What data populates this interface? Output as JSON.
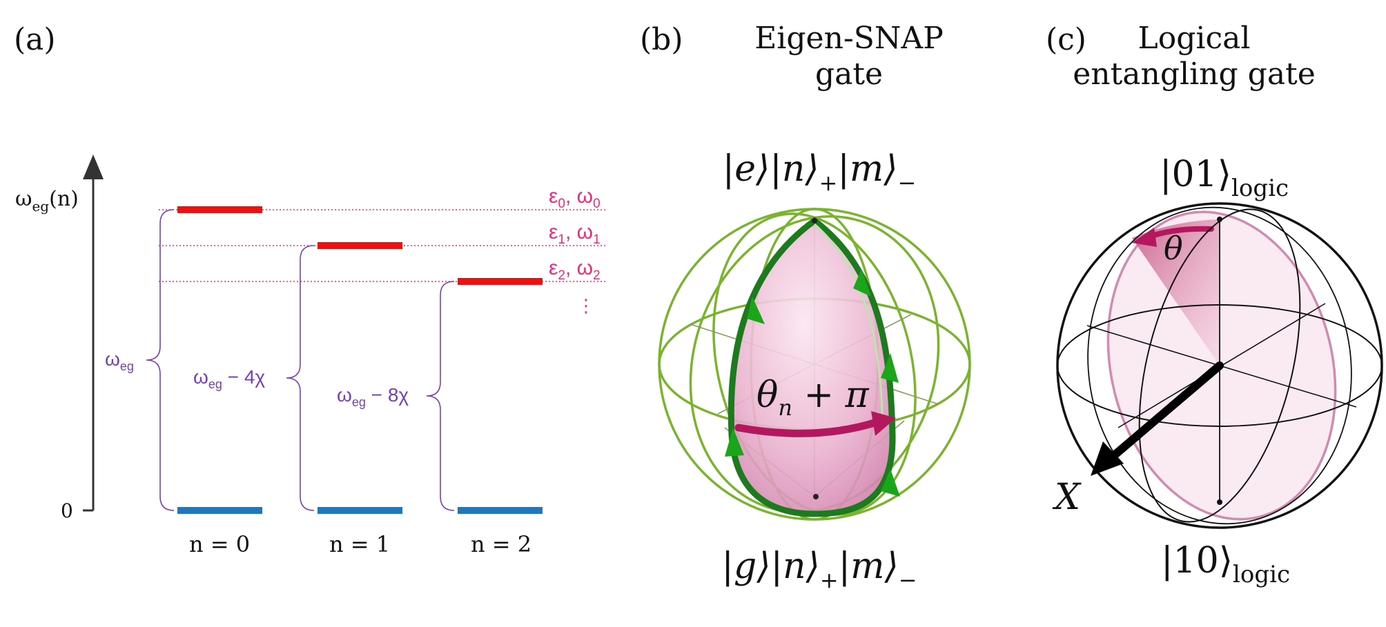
{
  "colors": {
    "upper_level": "#ee1111",
    "lower_level": "#1f77c0",
    "energy_label": "#ee2a7b",
    "brace": "#7a3db8",
    "axis": "#333333",
    "sphere_green": "#7ab32e",
    "path_green": "#1e7a1e",
    "arrow_magenta": "#b5175f",
    "pink_fill": "#e7a9c9",
    "pink_edge": "#d18ab0"
  },
  "panel_a": {
    "tag": "(a)",
    "y_axis_label": "ω",
    "y_axis_label_sub": "eg",
    "y_axis_label_arg": "(n)",
    "zero_tick": "0",
    "levels": [
      {
        "n_label": "n = 0",
        "energy": "ε",
        "energy_sub": "0",
        "freq": "ω",
        "freq_sub": "0",
        "gap": "ω",
        "gap_sub": "eg",
        "gap_rest": ""
      },
      {
        "n_label": "n = 1",
        "energy": "ε",
        "energy_sub": "1",
        "freq": "ω",
        "freq_sub": "1",
        "gap": "ω",
        "gap_sub": "eg",
        "gap_rest": " − 4χ"
      },
      {
        "n_label": "n = 2",
        "energy": "ε",
        "energy_sub": "2",
        "freq": "ω",
        "freq_sub": "2",
        "gap": "ω",
        "gap_sub": "eg",
        "gap_rest": " − 8χ"
      }
    ],
    "ellipsis": "⋮"
  },
  "panel_b": {
    "tag": "(b)",
    "title_line1": "Eigen-SNAP",
    "title_line2": "gate",
    "top_state": "|e⟩|n⟩",
    "top_state_sub1": "+",
    "top_state_mid": "|m⟩",
    "top_state_sub2": "−",
    "bottom_state": "|g⟩|n⟩",
    "bottom_state_sub1": "+",
    "bottom_state_mid": "|m⟩",
    "bottom_state_sub2": "−",
    "angle_label": "θ",
    "angle_sub": "n",
    "angle_rest": " + π"
  },
  "panel_c": {
    "tag": "(c)",
    "title_line1": "Logical",
    "title_line2": "entangling gate",
    "top_state": "|01⟩",
    "top_sub": "logic",
    "bottom_state": "|10⟩",
    "bottom_sub": "logic",
    "angle_label": "θ",
    "axis_label": "X"
  }
}
